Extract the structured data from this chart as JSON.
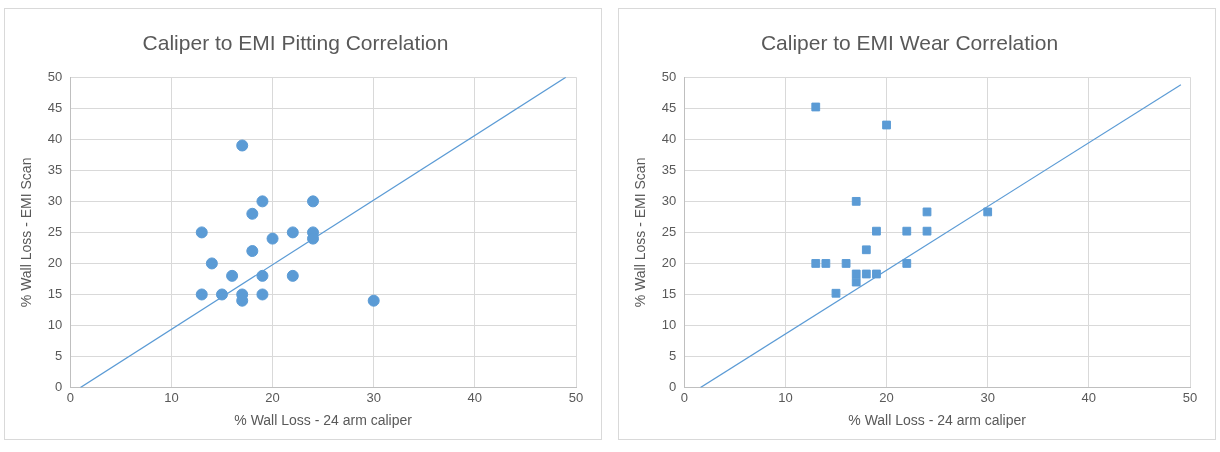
{
  "chart_data": [
    {
      "type": "scatter",
      "title": "Caliper to EMI Pitting Correlation",
      "xlabel": "% Wall Loss - 24 arm caliper",
      "ylabel": "% Wall Loss - EMI Scan",
      "xlim": [
        0,
        50
      ],
      "ylim": [
        0,
        50
      ],
      "xticks": [
        0,
        10,
        20,
        30,
        40,
        50
      ],
      "yticks": [
        0,
        5,
        10,
        15,
        20,
        25,
        30,
        35,
        40,
        45,
        50
      ],
      "grid": true,
      "legend": false,
      "series": [
        {
          "type": "scatter",
          "marker": "circle",
          "color": "#5b9bd5",
          "x": [
            17,
            19,
            24,
            18,
            13,
            22,
            24,
            20,
            24,
            18,
            14,
            16,
            19,
            22,
            13,
            15,
            17,
            19,
            17,
            30
          ],
          "values": [
            39,
            30,
            30,
            28,
            25,
            25,
            25,
            24,
            24,
            22,
            20,
            18,
            18,
            18,
            15,
            15,
            15,
            15,
            14,
            14
          ]
        },
        {
          "type": "line",
          "marker": "none",
          "color": "#5b9bd5",
          "x": [
            1,
            49
          ],
          "values": [
            0,
            50
          ]
        }
      ]
    },
    {
      "type": "scatter",
      "title": "Caliper to EMI Wear Correlation",
      "xlabel": "% Wall Loss - 24 arm caliper",
      "ylabel": "% Wall Loss - EMI Scan",
      "xlim": [
        0,
        50
      ],
      "ylim": [
        0,
        50
      ],
      "xticks": [
        0,
        10,
        20,
        30,
        40,
        50
      ],
      "yticks": [
        0,
        5,
        10,
        15,
        20,
        25,
        30,
        35,
        40,
        45,
        50
      ],
      "grid": true,
      "legend": false,
      "series": [
        {
          "type": "scatter",
          "marker": "square",
          "color": "#5b9bd5",
          "x": [
            13,
            20,
            17,
            24,
            30,
            19,
            22,
            24,
            18,
            13,
            14,
            16,
            22,
            17,
            18,
            19,
            17,
            15
          ],
          "values": [
            45.2,
            42.3,
            30,
            28.3,
            28.3,
            25.2,
            25.2,
            25.2,
            22.2,
            20,
            20,
            20,
            20,
            18.3,
            18.3,
            18.3,
            17,
            15.2
          ]
        },
        {
          "type": "line",
          "marker": "none",
          "color": "#5b9bd5",
          "x": [
            1.6,
            49.1
          ],
          "values": [
            0,
            48.8
          ]
        }
      ]
    }
  ]
}
